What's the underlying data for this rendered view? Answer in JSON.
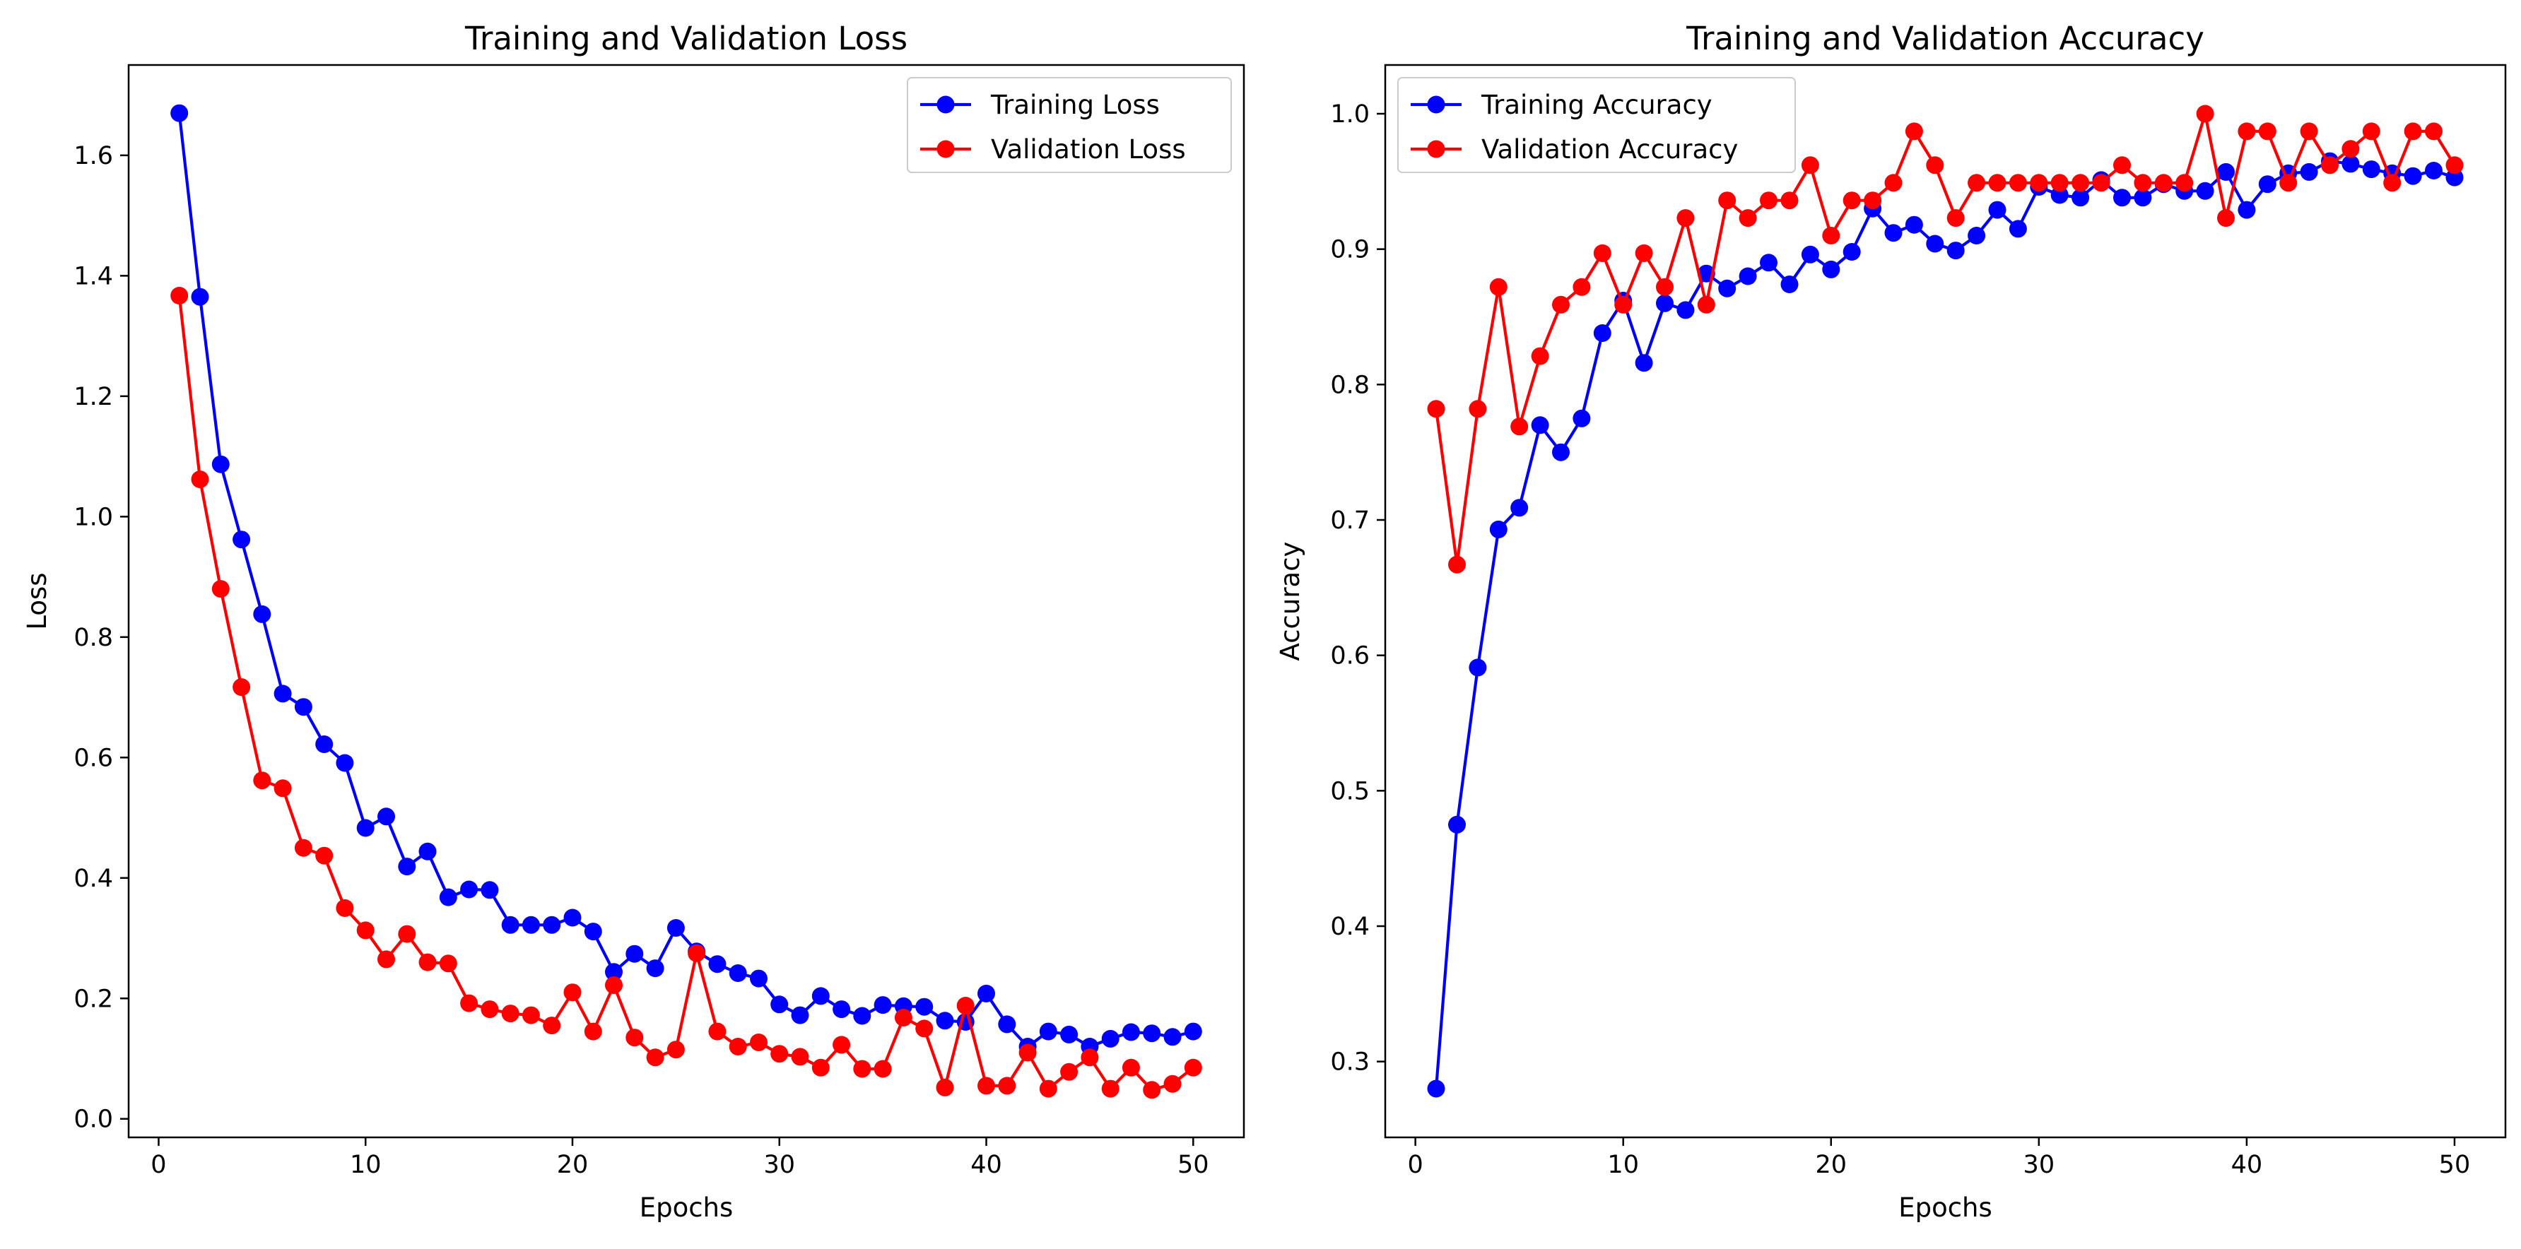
{
  "chart_data": [
    {
      "type": "line",
      "title": "Training and Validation Loss",
      "xlabel": "Epochs",
      "ylabel": "Loss",
      "xlim": [
        -1.45,
        52.45
      ],
      "ylim": [
        -0.0308,
        1.75
      ],
      "xticks": [
        "0",
        "10",
        "20",
        "30",
        "40",
        "50"
      ],
      "yticks": [
        "0.0",
        "0.2",
        "0.4",
        "0.6",
        "0.8",
        "1.0",
        "1.2",
        "1.4",
        "1.6"
      ],
      "grid": false,
      "legend": "upper right",
      "x": [
        1,
        2,
        3,
        4,
        5,
        6,
        7,
        8,
        9,
        10,
        11,
        12,
        13,
        14,
        15,
        16,
        17,
        18,
        19,
        20,
        21,
        22,
        23,
        24,
        25,
        26,
        27,
        28,
        29,
        30,
        31,
        32,
        33,
        34,
        35,
        36,
        37,
        38,
        39,
        40,
        41,
        42,
        43,
        44,
        45,
        46,
        47,
        48,
        49,
        50
      ],
      "series": [
        {
          "name": "Training Loss",
          "color": "#0000ff",
          "values": [
            1.67,
            1.365,
            1.087,
            0.962,
            0.838,
            0.706,
            0.684,
            0.622,
            0.591,
            0.483,
            0.502,
            0.419,
            0.444,
            0.368,
            0.381,
            0.38,
            0.322,
            0.322,
            0.322,
            0.334,
            0.311,
            0.244,
            0.274,
            0.25,
            0.317,
            0.278,
            0.257,
            0.242,
            0.233,
            0.19,
            0.172,
            0.204,
            0.182,
            0.171,
            0.189,
            0.187,
            0.186,
            0.163,
            0.161,
            0.208,
            0.157,
            0.12,
            0.145,
            0.14,
            0.12,
            0.133,
            0.144,
            0.142,
            0.136,
            0.145
          ]
        },
        {
          "name": "Validation Loss",
          "color": "#ff0000",
          "values": [
            1.367,
            1.062,
            0.88,
            0.717,
            0.562,
            0.549,
            0.45,
            0.437,
            0.35,
            0.313,
            0.265,
            0.307,
            0.26,
            0.258,
            0.192,
            0.182,
            0.175,
            0.172,
            0.155,
            0.21,
            0.145,
            0.222,
            0.135,
            0.102,
            0.115,
            0.275,
            0.145,
            0.12,
            0.127,
            0.108,
            0.103,
            0.085,
            0.123,
            0.083,
            0.083,
            0.168,
            0.15,
            0.052,
            0.188,
            0.055,
            0.055,
            0.11,
            0.05,
            0.078,
            0.102,
            0.05,
            0.085,
            0.048,
            0.058,
            0.085
          ]
        }
      ]
    },
    {
      "type": "line",
      "title": "Training and Validation Accuracy",
      "xlabel": "Epochs",
      "ylabel": "Accuracy",
      "xlim": [
        -1.45,
        52.45
      ],
      "ylim": [
        0.244,
        1.036
      ],
      "xticks": [
        "0",
        "10",
        "20",
        "30",
        "40",
        "50"
      ],
      "yticks": [
        "0.3",
        "0.4",
        "0.5",
        "0.6",
        "0.7",
        "0.8",
        "0.9",
        "1.0"
      ],
      "grid": false,
      "legend": "upper left",
      "x": [
        1,
        2,
        3,
        4,
        5,
        6,
        7,
        8,
        9,
        10,
        11,
        12,
        13,
        14,
        15,
        16,
        17,
        18,
        19,
        20,
        21,
        22,
        23,
        24,
        25,
        26,
        27,
        28,
        29,
        30,
        31,
        32,
        33,
        34,
        35,
        36,
        37,
        38,
        39,
        40,
        41,
        42,
        43,
        44,
        45,
        46,
        47,
        48,
        49,
        50
      ],
      "series": [
        {
          "name": "Training Accuracy",
          "color": "#0000ff",
          "values": [
            0.28,
            0.475,
            0.591,
            0.693,
            0.709,
            0.77,
            0.75,
            0.775,
            0.838,
            0.862,
            0.816,
            0.86,
            0.855,
            0.882,
            0.871,
            0.88,
            0.89,
            0.874,
            0.896,
            0.885,
            0.898,
            0.93,
            0.912,
            0.918,
            0.904,
            0.899,
            0.91,
            0.929,
            0.915,
            0.946,
            0.94,
            0.938,
            0.951,
            0.938,
            0.938,
            0.948,
            0.943,
            0.943,
            0.957,
            0.929,
            0.948,
            0.956,
            0.957,
            0.965,
            0.963,
            0.959,
            0.956,
            0.954,
            0.958,
            0.953
          ]
        },
        {
          "name": "Validation Accuracy",
          "color": "#ff0000",
          "values": [
            0.782,
            0.667,
            0.782,
            0.872,
            0.769,
            0.821,
            0.859,
            0.872,
            0.897,
            0.859,
            0.897,
            0.872,
            0.923,
            0.859,
            0.936,
            0.923,
            0.936,
            0.936,
            0.962,
            0.91,
            0.936,
            0.936,
            0.949,
            0.987,
            0.962,
            0.923,
            0.949,
            0.949,
            0.949,
            0.949,
            0.949,
            0.949,
            0.949,
            0.962,
            0.949,
            0.949,
            0.949,
            1.0,
            0.923,
            0.987,
            0.987,
            0.949,
            0.987,
            0.962,
            0.974,
            0.987,
            0.949,
            0.987,
            0.987,
            0.962
          ]
        }
      ]
    }
  ]
}
